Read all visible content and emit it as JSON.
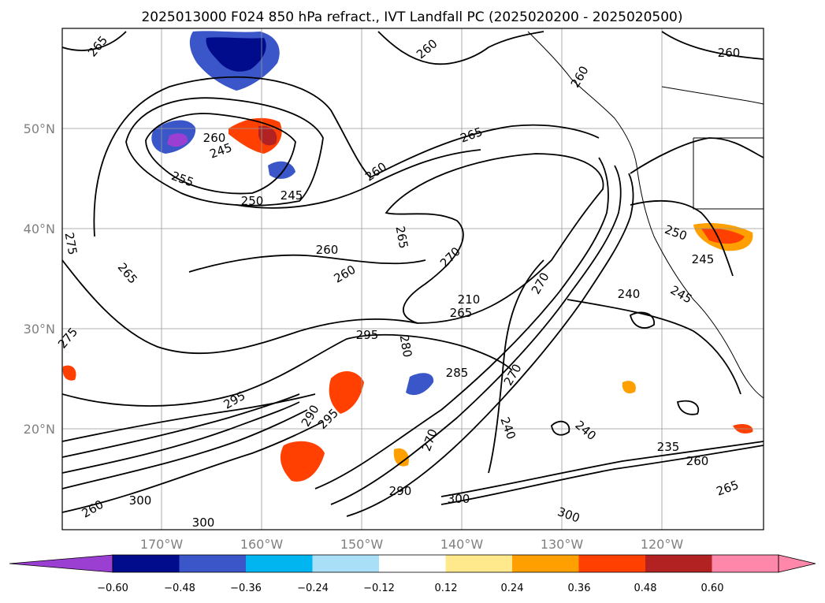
{
  "title": "2025013000 F024 850 hPa refract., IVT Landfall PC (2025020200 - 2025020500)",
  "map": {
    "lat_labels": [
      "50°N",
      "40°N",
      "30°N",
      "20°N"
    ],
    "lon_labels": [
      "170°W",
      "160°W",
      "150°W",
      "140°W",
      "130°W",
      "120°W"
    ],
    "contour_labels": [
      "265",
      "260",
      "260",
      "260",
      "265",
      "245",
      "255",
      "250",
      "245",
      "260",
      "260",
      "265",
      "275",
      "260",
      "270",
      "265",
      "260",
      "240",
      "245",
      "250",
      "245",
      "270",
      "210",
      "265",
      "275",
      "295",
      "285",
      "270",
      "280",
      "295",
      "290",
      "300",
      "240",
      "240",
      "235",
      "260",
      "265",
      "295",
      "300",
      "290",
      "300",
      "300",
      "260",
      "270"
    ]
  },
  "colorbar": {
    "ticks": [
      "−0.60",
      "−0.48",
      "−0.36",
      "−0.24",
      "−0.12",
      "0.12",
      "0.24",
      "0.36",
      "0.48",
      "0.60"
    ],
    "colors": [
      "#9a3fd2",
      "#000c8c",
      "#3a56c8",
      "#00b5f0",
      "#aadff8",
      "#ffffff",
      "#ffe98c",
      "#ffa000",
      "#ff4000",
      "#b22222",
      "#ff88aa",
      "#ff88aa"
    ]
  },
  "colors": {
    "land_line": "#000000",
    "grid": "#999999",
    "neg": "#3a56c8",
    "pos": "#ff4000"
  }
}
